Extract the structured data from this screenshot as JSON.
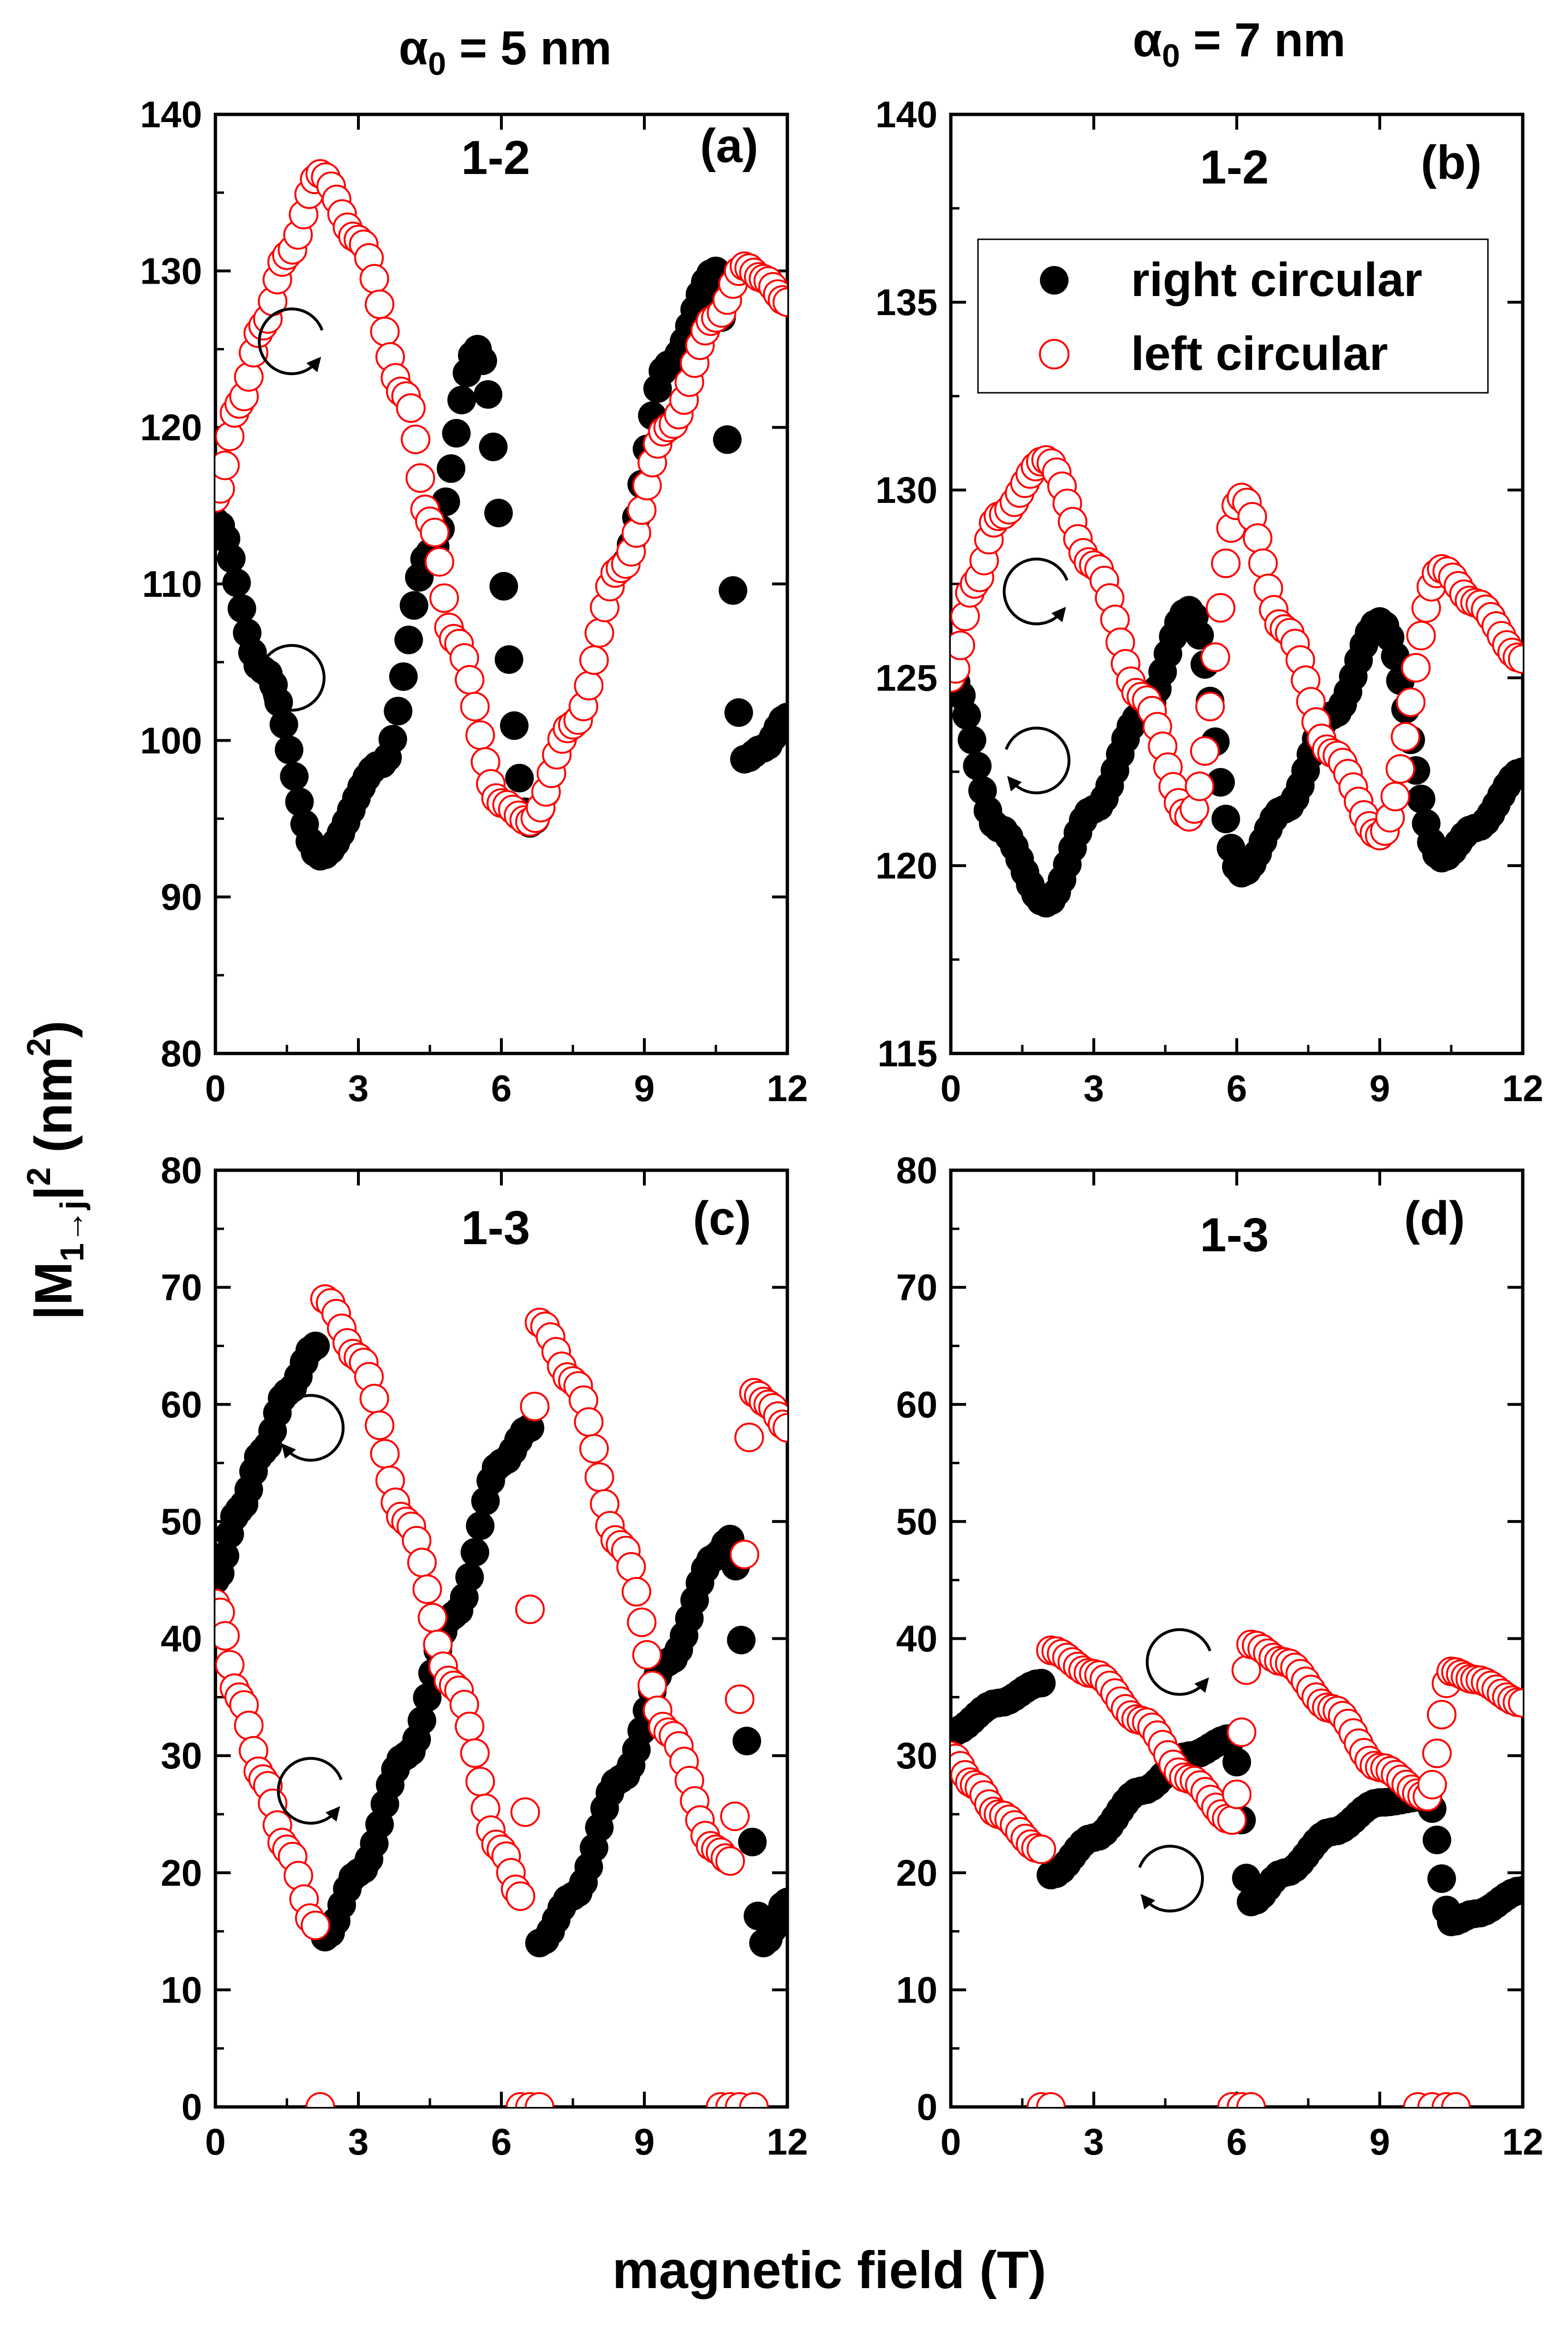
{
  "figure": {
    "col_titles": [
      {
        "prefix": "α",
        "sub": "0",
        "suffix": " = 5 nm"
      },
      {
        "prefix": "α",
        "sub": "0",
        "suffix": " = 7 nm"
      }
    ],
    "x_title": "magnetic field (T)",
    "y_title": {
      "a": "|M",
      "sub": "1→j",
      "b": "|",
      "sup": "2",
      "c": " (nm",
      "sup2": "2",
      "d": ")"
    },
    "colors": {
      "right": "#000000",
      "left": "#ff0000",
      "left_fill": "#ffffff"
    },
    "legend": {
      "right": "right circular",
      "left": "left circular",
      "panel": "b",
      "placement": "upper-right"
    }
  },
  "chart_data": [
    {
      "panel": "a",
      "tag": "(a)",
      "transition": "1-2",
      "type": "scatter",
      "xlim": [
        0,
        12
      ],
      "ylim": [
        80,
        140
      ],
      "xticks": [
        "0",
        "3",
        "6",
        "9",
        "12"
      ],
      "yticks": [
        "80",
        "90",
        "100",
        "110",
        "120",
        "130",
        "140"
      ],
      "series": [
        {
          "name": "right circular",
          "x": [
            0,
            1,
            2.2,
            3.5,
            4.5,
            5.5,
            6.6,
            7.5,
            8.5,
            9.5,
            10.5,
            11.1,
            11.5,
            12
          ],
          "y": [
            114,
            104.5,
            92.6,
            98.5,
            112,
            125,
            94.7,
            101,
            111,
            124,
            130,
            98.8,
            99.5,
            101.5
          ]
        },
        {
          "name": "left circular",
          "x": [
            0,
            0.5,
            1,
            1.5,
            2.2,
            3,
            4,
            4.5,
            5,
            6,
            6.6,
            7.5,
            8.5,
            9.5,
            10.5,
            11.1,
            11.5,
            12
          ],
          "y": [
            115.5,
            121.5,
            126.5,
            131,
            136.2,
            132,
            122,
            114,
            106.5,
            96,
            94.8,
            101,
            111,
            120,
            127,
            130.3,
            129.5,
            128
          ]
        }
      ],
      "annotations": [
        {
          "type": "rotation",
          "direction": "counter-clockwise",
          "near": {
            "x": 1.6,
            "y": 125.5
          }
        },
        {
          "type": "rotation",
          "direction": "clockwise",
          "near": {
            "x": 1.6,
            "y": 104
          }
        }
      ]
    },
    {
      "panel": "b",
      "tag": "(b)",
      "transition": "1-2",
      "type": "scatter",
      "xlim": [
        0,
        12
      ],
      "ylim": [
        115,
        140
      ],
      "xticks": [
        "0",
        "3",
        "6",
        "9",
        "12"
      ],
      "yticks": [
        "115",
        "120",
        "125",
        "130",
        "135",
        "140"
      ],
      "series": [
        {
          "name": "right circular",
          "x": [
            0,
            1,
            2,
            3,
            4,
            5,
            6.1,
            7,
            8,
            9,
            10.3,
            11,
            12
          ],
          "y": [
            125,
            121,
            119,
            121.5,
            124,
            126.8,
            119.8,
            121.5,
            124,
            126.5,
            120.2,
            121,
            122.5
          ]
        },
        {
          "name": "left circular",
          "x": [
            0,
            0.5,
            1,
            2,
            3,
            4,
            5,
            6.1,
            7,
            8,
            9,
            10.3,
            11,
            12
          ],
          "y": [
            125,
            127.5,
            129.3,
            130.8,
            128,
            124.5,
            121.3,
            129.8,
            126.3,
            123,
            120.8,
            127.9,
            127,
            125.5
          ]
        }
      ],
      "annotations": [
        {
          "type": "rotation",
          "direction": "counter-clockwise",
          "near": {
            "x": 1.8,
            "y": 127.3
          }
        },
        {
          "type": "rotation",
          "direction": "clockwise",
          "near": {
            "x": 1.8,
            "y": 122.8
          }
        }
      ]
    },
    {
      "panel": "c",
      "tag": "(c)",
      "transition": "1-3",
      "type": "scatter",
      "xlim": [
        0,
        12
      ],
      "ylim": [
        0,
        80
      ],
      "xticks": [
        "0",
        "3",
        "6",
        "9",
        "12"
      ],
      "yticks": [
        "0",
        "10",
        "20",
        "30",
        "40",
        "50",
        "60",
        "70",
        "80"
      ],
      "series": [
        {
          "name": "right circular",
          "x": [
            0,
            0.5,
            1,
            1.5,
            2.1,
            2.3,
            3,
            4,
            5,
            6,
            6.6,
            6.8,
            7.5,
            8.5,
            9.5,
            10.5,
            10.8,
            11.5,
            12
          ],
          "y": [
            45,
            51,
            56,
            61,
            65,
            14.5,
            20,
            30,
            42,
            55,
            58,
            14,
            18,
            28,
            38,
            47,
            48.5,
            14,
            17.5
          ],
          "zero_x": []
        },
        {
          "name": "left circular",
          "x": [
            0,
            0.5,
            1,
            1.5,
            2.1,
            2.3,
            3,
            4,
            5,
            6,
            6.4,
            6.8,
            7.5,
            8.5,
            9.5,
            10.5,
            10.8,
            11.3,
            11.6,
            12
          ],
          "y": [
            43,
            35,
            28,
            22,
            15.5,
            69,
            64,
            50,
            36,
            22,
            18,
            67,
            62,
            48,
            32,
            22,
            21,
            61,
            60,
            58
          ]
        },
        {
          "name": "zero markers",
          "x": [
            2.2,
            6.4,
            6.6,
            6.8,
            10.6,
            10.8,
            11,
            11.3
          ],
          "y": [
            0,
            0,
            0,
            0,
            0,
            0,
            0,
            0
          ]
        }
      ],
      "annotations": [
        {
          "type": "rotation",
          "direction": "clockwise",
          "near": {
            "x": 2.0,
            "y": 58
          }
        },
        {
          "type": "rotation",
          "direction": "counter-clockwise",
          "near": {
            "x": 2.0,
            "y": 27
          }
        }
      ]
    },
    {
      "panel": "d",
      "tag": "(d)",
      "transition": "1-3",
      "type": "scatter",
      "xlim": [
        0,
        12
      ],
      "ylim": [
        0,
        80
      ],
      "xticks": [
        "0",
        "3",
        "6",
        "9",
        "12"
      ],
      "yticks": [
        "0",
        "10",
        "20",
        "30",
        "40",
        "50",
        "60",
        "70",
        "80"
      ],
      "series": [
        {
          "name": "right circular",
          "x": [
            0,
            1,
            1.9,
            2.1,
            3,
            4,
            5,
            5.9,
            6.3,
            7,
            8,
            9,
            10,
            10.5,
            11,
            12
          ],
          "y": [
            32,
            34.5,
            36.2,
            19.8,
            23,
            27,
            30,
            31.5,
            17.5,
            20,
            23.5,
            26,
            26.5,
            15.8,
            16.5,
            18.5
          ]
        },
        {
          "name": "left circular",
          "x": [
            0,
            0.5,
            1,
            1.9,
            2.1,
            3,
            4,
            5,
            5.9,
            6.3,
            7,
            8,
            9,
            10,
            10.5,
            11,
            12
          ],
          "y": [
            30,
            27.5,
            25,
            22,
            39,
            37,
            33,
            28,
            24.5,
            39.5,
            38,
            34,
            29,
            26.5,
            37.2,
            36.5,
            34.5
          ]
        },
        {
          "name": "zero markers",
          "x": [
            1.9,
            2.1,
            5.9,
            6.1,
            6.3,
            9.8,
            10.1,
            10.4,
            10.6
          ],
          "y": [
            0,
            0,
            0,
            0,
            0,
            0,
            0,
            0,
            0
          ]
        }
      ],
      "annotations": [
        {
          "type": "rotation",
          "direction": "counter-clockwise",
          "near": {
            "x": 4.8,
            "y": 38
          }
        },
        {
          "type": "rotation",
          "direction": "clockwise",
          "near": {
            "x": 4.6,
            "y": 19.5
          }
        }
      ]
    }
  ]
}
